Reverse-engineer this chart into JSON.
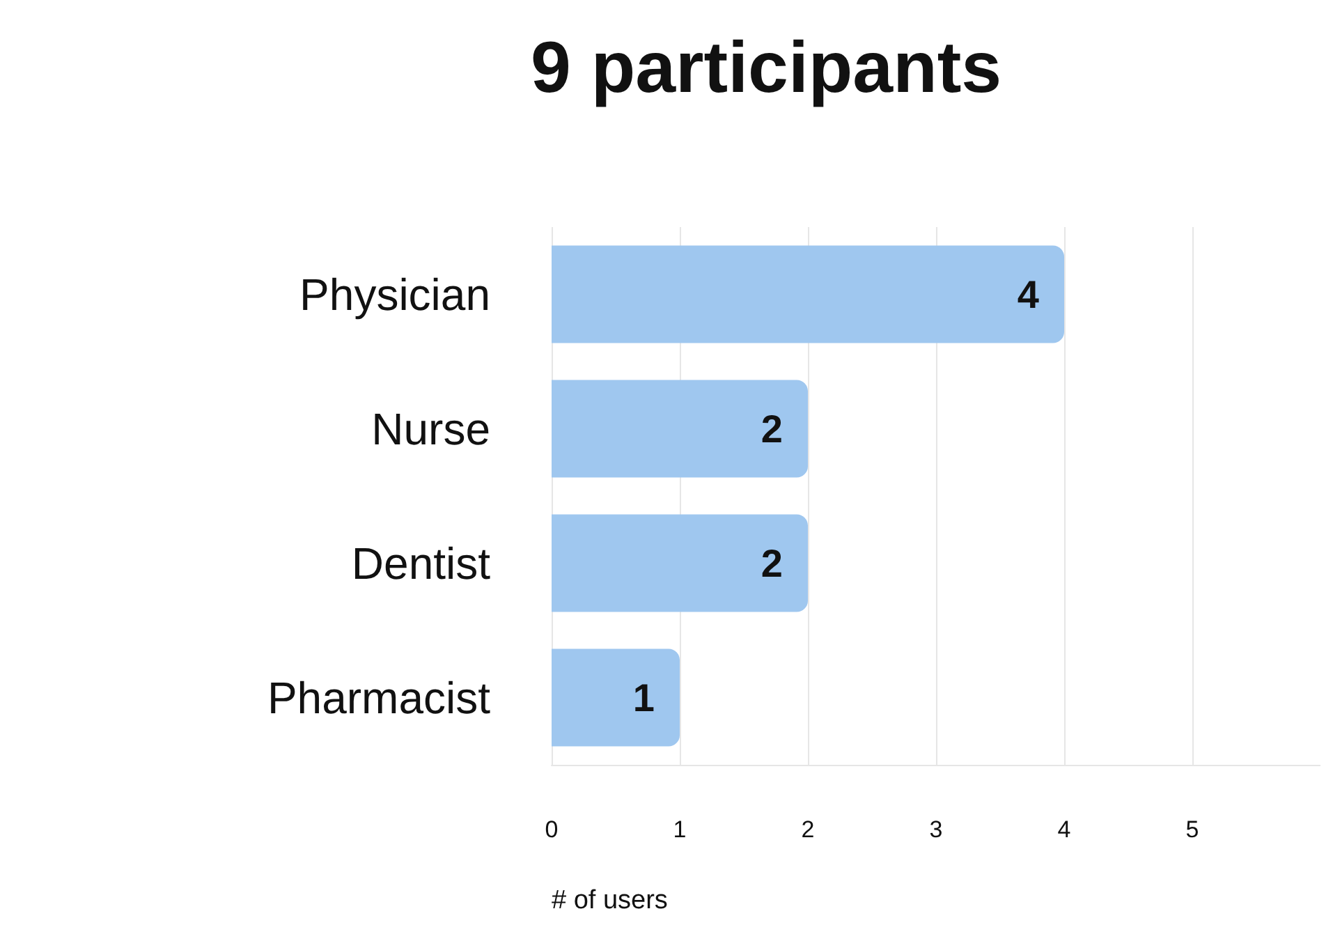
{
  "chart_data": {
    "type": "bar",
    "orientation": "horizontal",
    "title": "9 participants",
    "xlabel": "# of users",
    "categories": [
      "Physician",
      "Nurse",
      "Dentist",
      "Pharmacist"
    ],
    "values": [
      4,
      2,
      2,
      1
    ],
    "color": "#9fc7ef",
    "xlim": [
      0,
      6
    ],
    "xticks": [
      0,
      1,
      2,
      3,
      4,
      5
    ],
    "grid": "x",
    "data_labels": true
  }
}
